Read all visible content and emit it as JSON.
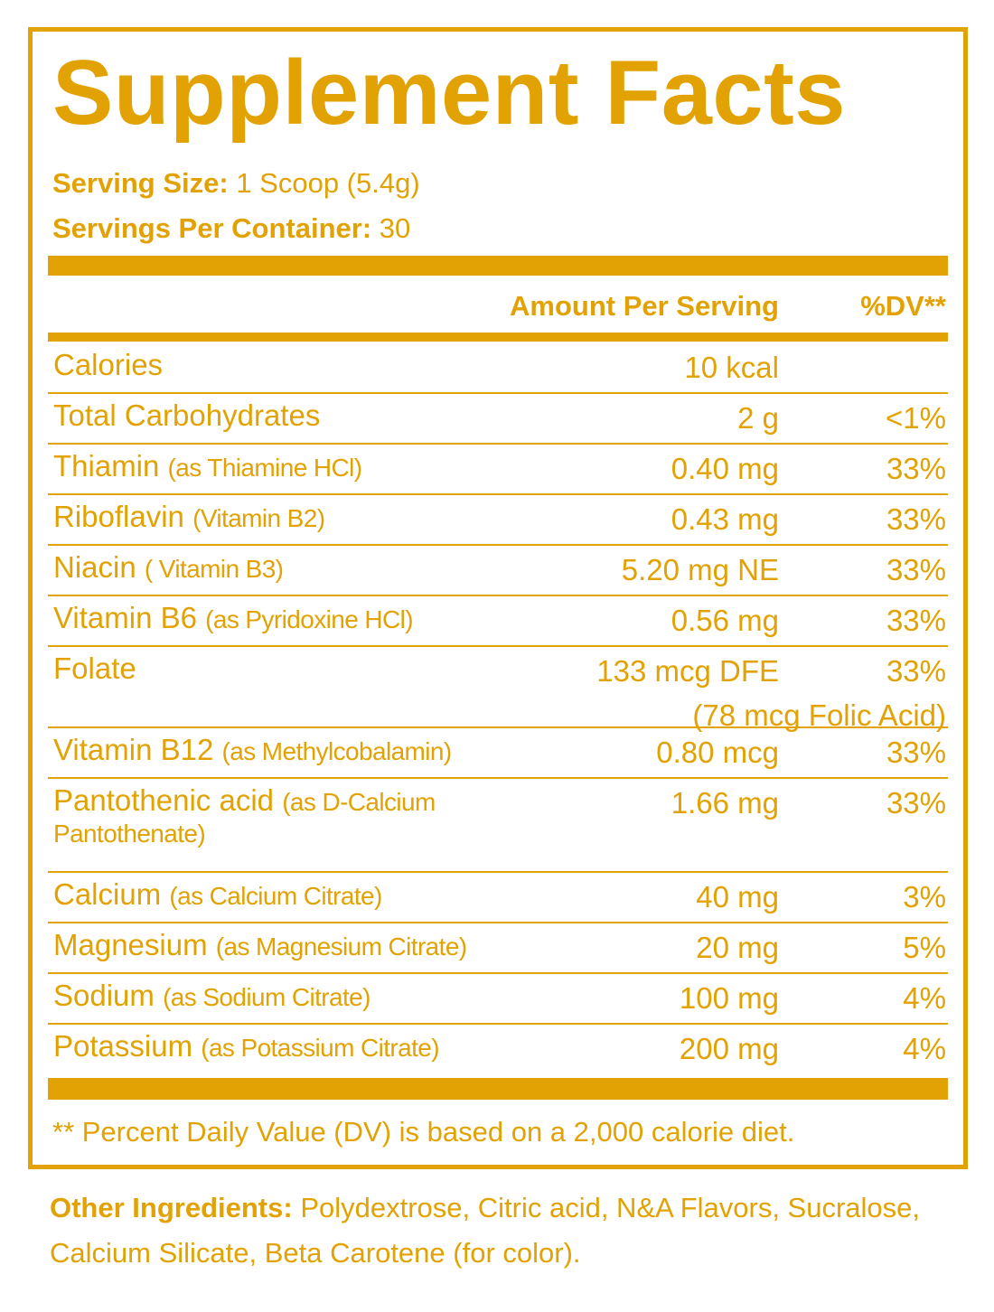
{
  "title": "Supplement Facts",
  "serving_size": {
    "label": "Serving Size:",
    "value": "1 Scoop (5.4g)"
  },
  "servings_per_container": {
    "label": "Servings Per Container:",
    "value": "30"
  },
  "header": {
    "amount": "Amount Per Serving",
    "dv": "%DV**"
  },
  "rows": [
    {
      "name": "Calories",
      "amount": "10 kcal"
    },
    {
      "name": "Total Carbohydrates",
      "amount": "2 g",
      "dv": "<1%"
    },
    {
      "name": "Thiamin",
      "detail": "(as Thiamine HCl)",
      "amount": "0.40 mg",
      "dv": "33%"
    },
    {
      "name": "Riboflavin",
      "detail": "(Vitamin B2)",
      "amount": "0.43 mg",
      "dv": "33%"
    },
    {
      "name": "Niacin",
      "detail": "( Vitamin B3)",
      "amount": "5.20 mg NE",
      "dv": "33%"
    },
    {
      "name": "Vitamin B6",
      "detail": "(as Pyridoxine HCl)",
      "amount": "0.56 mg",
      "dv": "33%"
    },
    {
      "name": "Folate",
      "amount": "133 mcg DFE",
      "dv": "33%",
      "note": "(78 mcg Folic Acid)"
    },
    {
      "name": "Vitamin B12",
      "detail": "(as Methylcobalamin)",
      "amount": "0.80 mcg",
      "dv": "33%"
    },
    {
      "name": "Pantothenic acid",
      "detail": "(as D-Calcium Pantothenate)",
      "amount": "1.66 mg",
      "dv": "33%"
    },
    {
      "name": "Calcium",
      "detail": "(as Calcium Citrate)",
      "amount": "40 mg",
      "dv": "3%"
    },
    {
      "name": "Magnesium",
      "detail": "(as Magnesium Citrate)",
      "amount": "20 mg",
      "dv": "5%"
    },
    {
      "name": "Sodium",
      "detail": "(as Sodium Citrate)",
      "amount": "100 mg",
      "dv": "4%"
    },
    {
      "name": "Potassium",
      "detail": "(as Potassium Citrate)",
      "amount": "200 mg",
      "dv": "4%"
    }
  ],
  "footnote": "** Percent Daily Value (DV) is based on a 2,000 calorie diet.",
  "other_ingredients": {
    "label": "Other Ingredients:",
    "text": "Polydextrose, Citric acid, N&A Flavors, Sucralose, Calcium Silicate, Beta Carotene (for color)."
  }
}
